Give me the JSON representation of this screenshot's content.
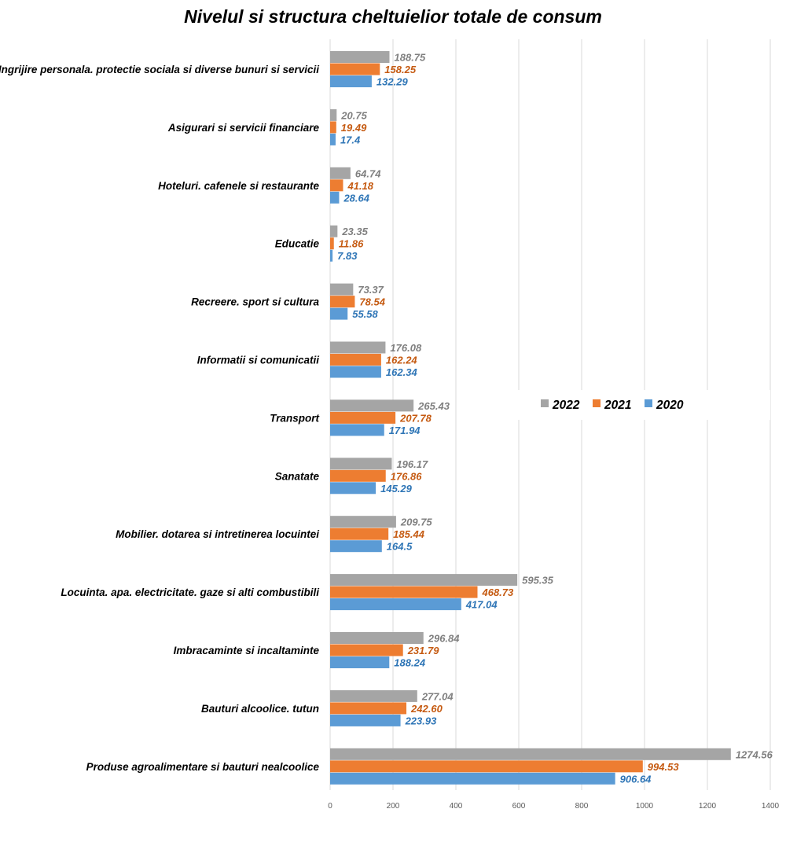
{
  "chart_data": {
    "type": "bar",
    "orientation": "horizontal",
    "title": "Nivelul si structura cheltuielior totale de consum",
    "xlabel": "",
    "ylabel": "",
    "xlim": [
      0,
      1400
    ],
    "ticks": [
      "0",
      "200",
      "400",
      "600",
      "800",
      "1000",
      "1200",
      "1400"
    ],
    "grid": true,
    "legend_position": "right",
    "categories": [
      "Ingrijire personala. protectie sociala si diverse bunuri si servicii",
      "Asigurari si servicii financiare",
      "Hoteluri. cafenele si restaurante",
      "Educatie",
      "Recreere. sport si cultura",
      "Informatii si comunicatii",
      "Transport",
      "Sanatate",
      "Mobilier. dotarea si intretinerea locuintei",
      "Locuinta. apa. electricitate. gaze si alti combustibili",
      "Imbracaminte si incaltaminte",
      "Bauturi alcoolice. tutun",
      "Produse agroalimentare si bauturi nealcoolice"
    ],
    "series": [
      {
        "name": "2022",
        "color": "#a5a5a5",
        "label_color": "#7f7f7f",
        "values": [
          188.75,
          20.75,
          64.74,
          23.35,
          73.37,
          176.08,
          265.43,
          196.17,
          209.75,
          595.35,
          296.84,
          277.04,
          1274.56
        ],
        "labels": [
          "188.75",
          "20.75",
          "64.74",
          "23.35",
          "73.37",
          "176.08",
          "265.43",
          "196.17",
          "209.75",
          "595.35",
          "296.84",
          "277.04",
          "1274.56"
        ]
      },
      {
        "name": "2021",
        "color": "#ed7d31",
        "label_color": "#c55a11",
        "values": [
          158.25,
          19.49,
          41.18,
          11.86,
          78.54,
          162.24,
          207.78,
          176.86,
          185.44,
          468.73,
          231.79,
          242.6,
          994.53
        ],
        "labels": [
          "158.25",
          "19.49",
          "41.18",
          "11.86",
          "78.54",
          "162.24",
          "207.78",
          "176.86",
          "185.44",
          "468.73",
          "231.79",
          "242.60",
          "994.53"
        ]
      },
      {
        "name": "2020",
        "color": "#5b9bd5",
        "label_color": "#2e75b6",
        "values": [
          132.29,
          17.4,
          28.64,
          7.83,
          55.58,
          162.34,
          171.94,
          145.29,
          164.5,
          417.04,
          188.24,
          223.93,
          906.64
        ],
        "labels": [
          "132.29",
          "17.4",
          "28.64",
          "7.83",
          "55.58",
          "162.34",
          "171.94",
          "145.29",
          "164.5",
          "417.04",
          "188.24",
          "223.93",
          "906.64"
        ]
      }
    ]
  }
}
